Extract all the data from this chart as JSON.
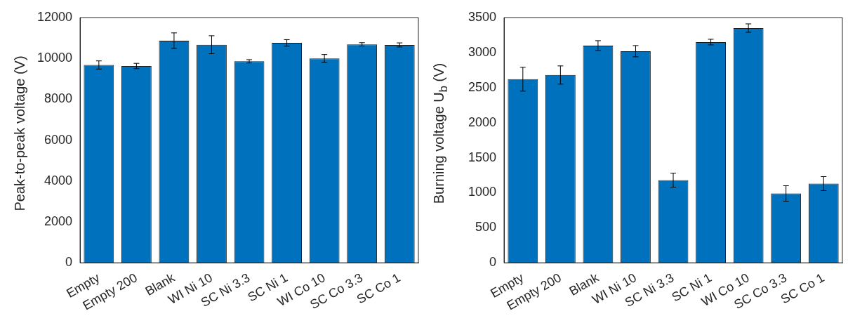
{
  "chart_data": [
    {
      "type": "bar",
      "ylabel": "Peak-to-peak voltage (V)",
      "categories": [
        "Empty",
        "Empty 200",
        "Blank",
        "WI Ni 10",
        "SC Ni 3.3",
        "SC Ni 1",
        "WI Co 10",
        "SC Co 3.3",
        "SC Co 1"
      ],
      "color": "#0072bd",
      "values": [
        9680,
        9630,
        10870,
        10670,
        9860,
        10760,
        10000,
        10690,
        10660
      ],
      "errors": [
        200,
        130,
        380,
        440,
        80,
        160,
        190,
        80,
        100
      ],
      "ylim": [
        0,
        12000
      ],
      "yticks": [
        0,
        2000,
        4000,
        6000,
        8000,
        10000,
        12000
      ]
    },
    {
      "type": "bar",
      "ylabel": "Burning voltage U$_{b}$ (V)",
      "categories": [
        "Empty",
        "Empty 200",
        "Blank",
        "WI Ni 10",
        "SC Ni 3.3",
        "SC Ni 1",
        "WI Co 10",
        "SC Co 3.3",
        "SC Co 1"
      ],
      "color": "#0072bd",
      "values": [
        2620,
        2680,
        3100,
        3020,
        1180,
        3150,
        3350,
        990,
        1130
      ],
      "errors": [
        170,
        130,
        70,
        80,
        100,
        40,
        60,
        110,
        100
      ],
      "ylim": [
        0,
        3500
      ],
      "yticks": [
        0,
        500,
        1000,
        1500,
        2000,
        2500,
        3000,
        3500
      ]
    }
  ]
}
